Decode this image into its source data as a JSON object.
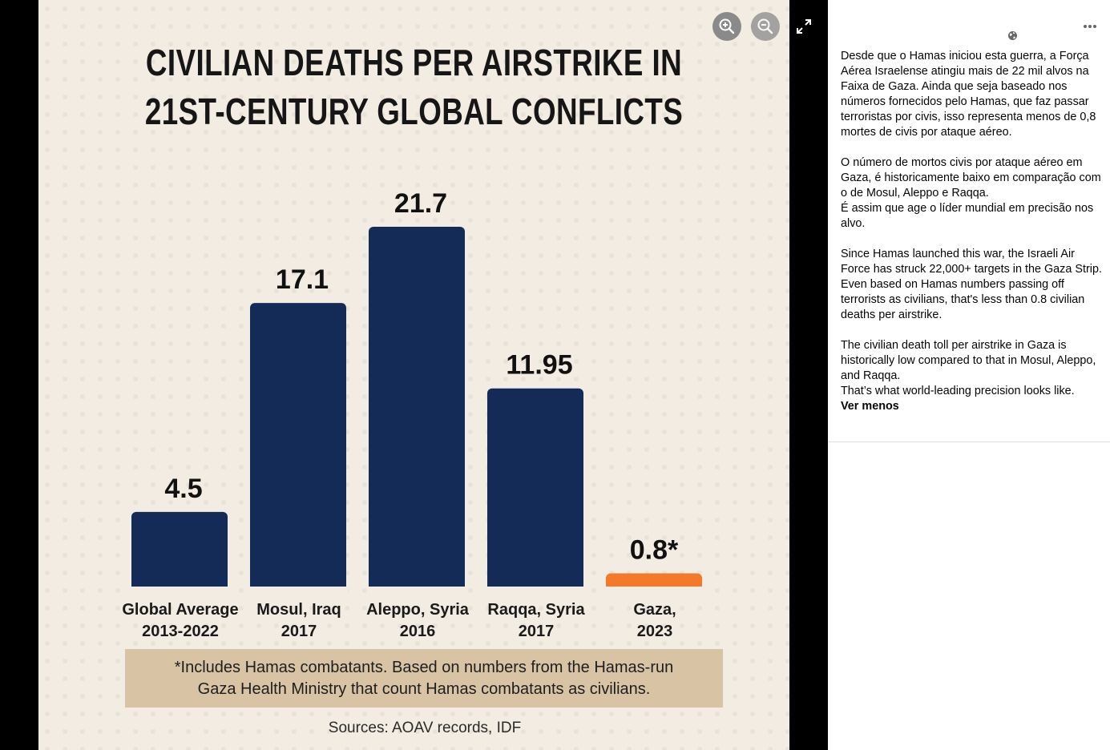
{
  "chart_data": {
    "type": "bar",
    "title_lines": [
      "CIVILIAN DEATHS PER AIRSTRIKE IN",
      "21ST-CENTURY GLOBAL CONFLICTS"
    ],
    "categories": [
      [
        "Global Average",
        "2013-2022"
      ],
      [
        "Mosul, Iraq",
        "2017"
      ],
      [
        "Aleppo, Syria",
        "2016"
      ],
      [
        "Raqqa, Syria",
        "2017"
      ],
      [
        "Gaza,",
        "2023"
      ]
    ],
    "values": [
      4.5,
      17.1,
      21.7,
      11.95,
      0.8
    ],
    "value_labels": [
      "4.5",
      "17.1",
      "21.7",
      "11.95",
      "0.8*"
    ],
    "bar_colors": [
      "#142a57",
      "#142a57",
      "#142a57",
      "#142a57",
      "#f47a2b"
    ],
    "ylim": [
      0,
      21.7
    ],
    "grid": false
  },
  "note_lines": [
    "*Includes Hamas combatants. Based on numbers from the Hamas-run",
    "Gaza Health Ministry that count Hamas combatants as civilians."
  ],
  "sources": "Sources: AOAV records, IDF",
  "controls": {
    "zoom_in_icon": "zoom-in-icon",
    "zoom_out_icon": "zoom-out-icon",
    "fullscreen_icon": "expand-icon"
  },
  "post": {
    "privacy_icon": "globe-icon",
    "menu_icon": "more-options-icon",
    "paragraphs": [
      "Desde que o Hamas iniciou esta guerra, a Força Aérea Israelense atingiu mais de 22 mil alvos na Faixa de Gaza. Ainda que seja baseado nos números fornecidos pelo Hamas, que faz passar terroristas por civis, isso representa menos de 0,8 mortes de civis por ataque aéreo.",
      "O número de mortos civis por ataque aéreo em Gaza, é historicamente baixo em comparação com o de Mosul, Aleppo e Raqqa.\nÉ assim que age o líder mundial em precisão nos alvo.",
      "Since Hamas launched this war, the Israeli Air Force has struck 22,000+ targets in the Gaza Strip. Even based on Hamas numbers passing off terrorists as civilians, that's less than 0.8 civilian deaths per airstrike."
    ],
    "last_paragraph": "The civilian death toll per airstrike in Gaza is historically low compared to that in Mosul, Aleppo, and Raqqa.\nThat’s what world-leading precision looks like.",
    "see_less": "Ver menos"
  }
}
